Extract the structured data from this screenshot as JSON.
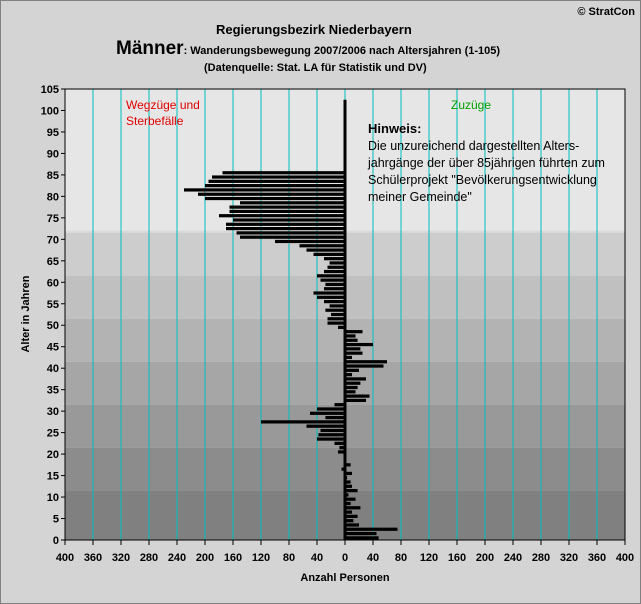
{
  "header": {
    "copyright": "© StratCon",
    "region": "Regierungsbezirk Niederbayern",
    "gender": "Männer",
    "subtitle": ": Wanderungsbewegung 2007/2006 nach Altersjahren (1-105)",
    "source": "(Datenquelle: Stat. LA für Statistik und DV)"
  },
  "chart_data": {
    "type": "bar",
    "orientation": "horizontal",
    "xlabel": "Anzahl Personen",
    "ylabel": "Alter in Jahren",
    "xlim": [
      -400,
      400
    ],
    "ylim": [
      0,
      105
    ],
    "x_ticks": [
      "400",
      "360",
      "320",
      "280",
      "240",
      "200",
      "160",
      "120",
      "80",
      "40",
      "0",
      "40",
      "80",
      "120",
      "160",
      "200",
      "240",
      "280",
      "320",
      "360",
      "400"
    ],
    "y_ticks": [
      "0",
      "5",
      "10",
      "15",
      "20",
      "25",
      "30",
      "35",
      "40",
      "45",
      "50",
      "55",
      "60",
      "65",
      "70",
      "75",
      "80",
      "85",
      "90",
      "95",
      "100",
      "105"
    ],
    "left_label_lines": [
      "Wegzüge und",
      "Sterbefälle"
    ],
    "right_label": "Zuzüge",
    "label_colors": {
      "left": "#e00000",
      "right": "#00a000"
    },
    "note_title": "Hinweis:",
    "note_lines": [
      "Die unzureichend dargestellten Alters-",
      "jahrgänge der über 85jährigen führten zum",
      "Schülerprojekt \"Bevölkerungsentwicklung",
      "meiner Gemeinde\""
    ],
    "ages": [
      0,
      1,
      2,
      3,
      4,
      5,
      6,
      7,
      8,
      9,
      10,
      11,
      12,
      13,
      14,
      15,
      16,
      17,
      18,
      19,
      20,
      21,
      22,
      23,
      24,
      25,
      26,
      27,
      28,
      29,
      30,
      31,
      32,
      33,
      34,
      35,
      36,
      37,
      38,
      39,
      40,
      41,
      42,
      43,
      44,
      45,
      46,
      47,
      48,
      49,
      50,
      51,
      52,
      53,
      54,
      55,
      56,
      57,
      58,
      59,
      60,
      61,
      62,
      63,
      64,
      65,
      66,
      67,
      68,
      69,
      70,
      71,
      72,
      73,
      74,
      75,
      76,
      77,
      78,
      79,
      80,
      81,
      82,
      83,
      84,
      85,
      86,
      87,
      88,
      89,
      90,
      91,
      92,
      93,
      94,
      95,
      96,
      97,
      98,
      99,
      100,
      101,
      102
    ],
    "values": [
      48,
      45,
      75,
      20,
      12,
      18,
      10,
      22,
      8,
      15,
      5,
      18,
      10,
      8,
      3,
      10,
      -5,
      8,
      2,
      -2,
      -10,
      -8,
      -15,
      -40,
      -38,
      -35,
      -55,
      -120,
      -28,
      -50,
      -40,
      -15,
      30,
      35,
      15,
      18,
      22,
      30,
      10,
      20,
      55,
      60,
      10,
      25,
      22,
      40,
      18,
      15,
      25,
      -10,
      -25,
      -25,
      -20,
      -28,
      -22,
      -30,
      -40,
      -45,
      -30,
      -28,
      -35,
      -40,
      -30,
      -25,
      -22,
      -30,
      -45,
      -55,
      -65,
      -100,
      -150,
      -155,
      -170,
      -170,
      -160,
      -180,
      -165,
      -165,
      -150,
      -200,
      -210,
      -230,
      -200,
      -195,
      -190,
      -175,
      0,
      0,
      0,
      0,
      0,
      0,
      0,
      0,
      0,
      0,
      0,
      0,
      0,
      0,
      0,
      0,
      0,
      0,
      0
    ],
    "grid": true,
    "bar_color": "#000000",
    "gridline_color": "#00c0c0",
    "band_colors": [
      "#808080",
      "#8c8c8c",
      "#999999",
      "#a6a6a6",
      "#b3b3b3",
      "#c0c0c0",
      "#cdcdcd",
      "#dadada",
      "#e6e6e6",
      "#e6e6e6",
      "#e6e6e6"
    ]
  }
}
